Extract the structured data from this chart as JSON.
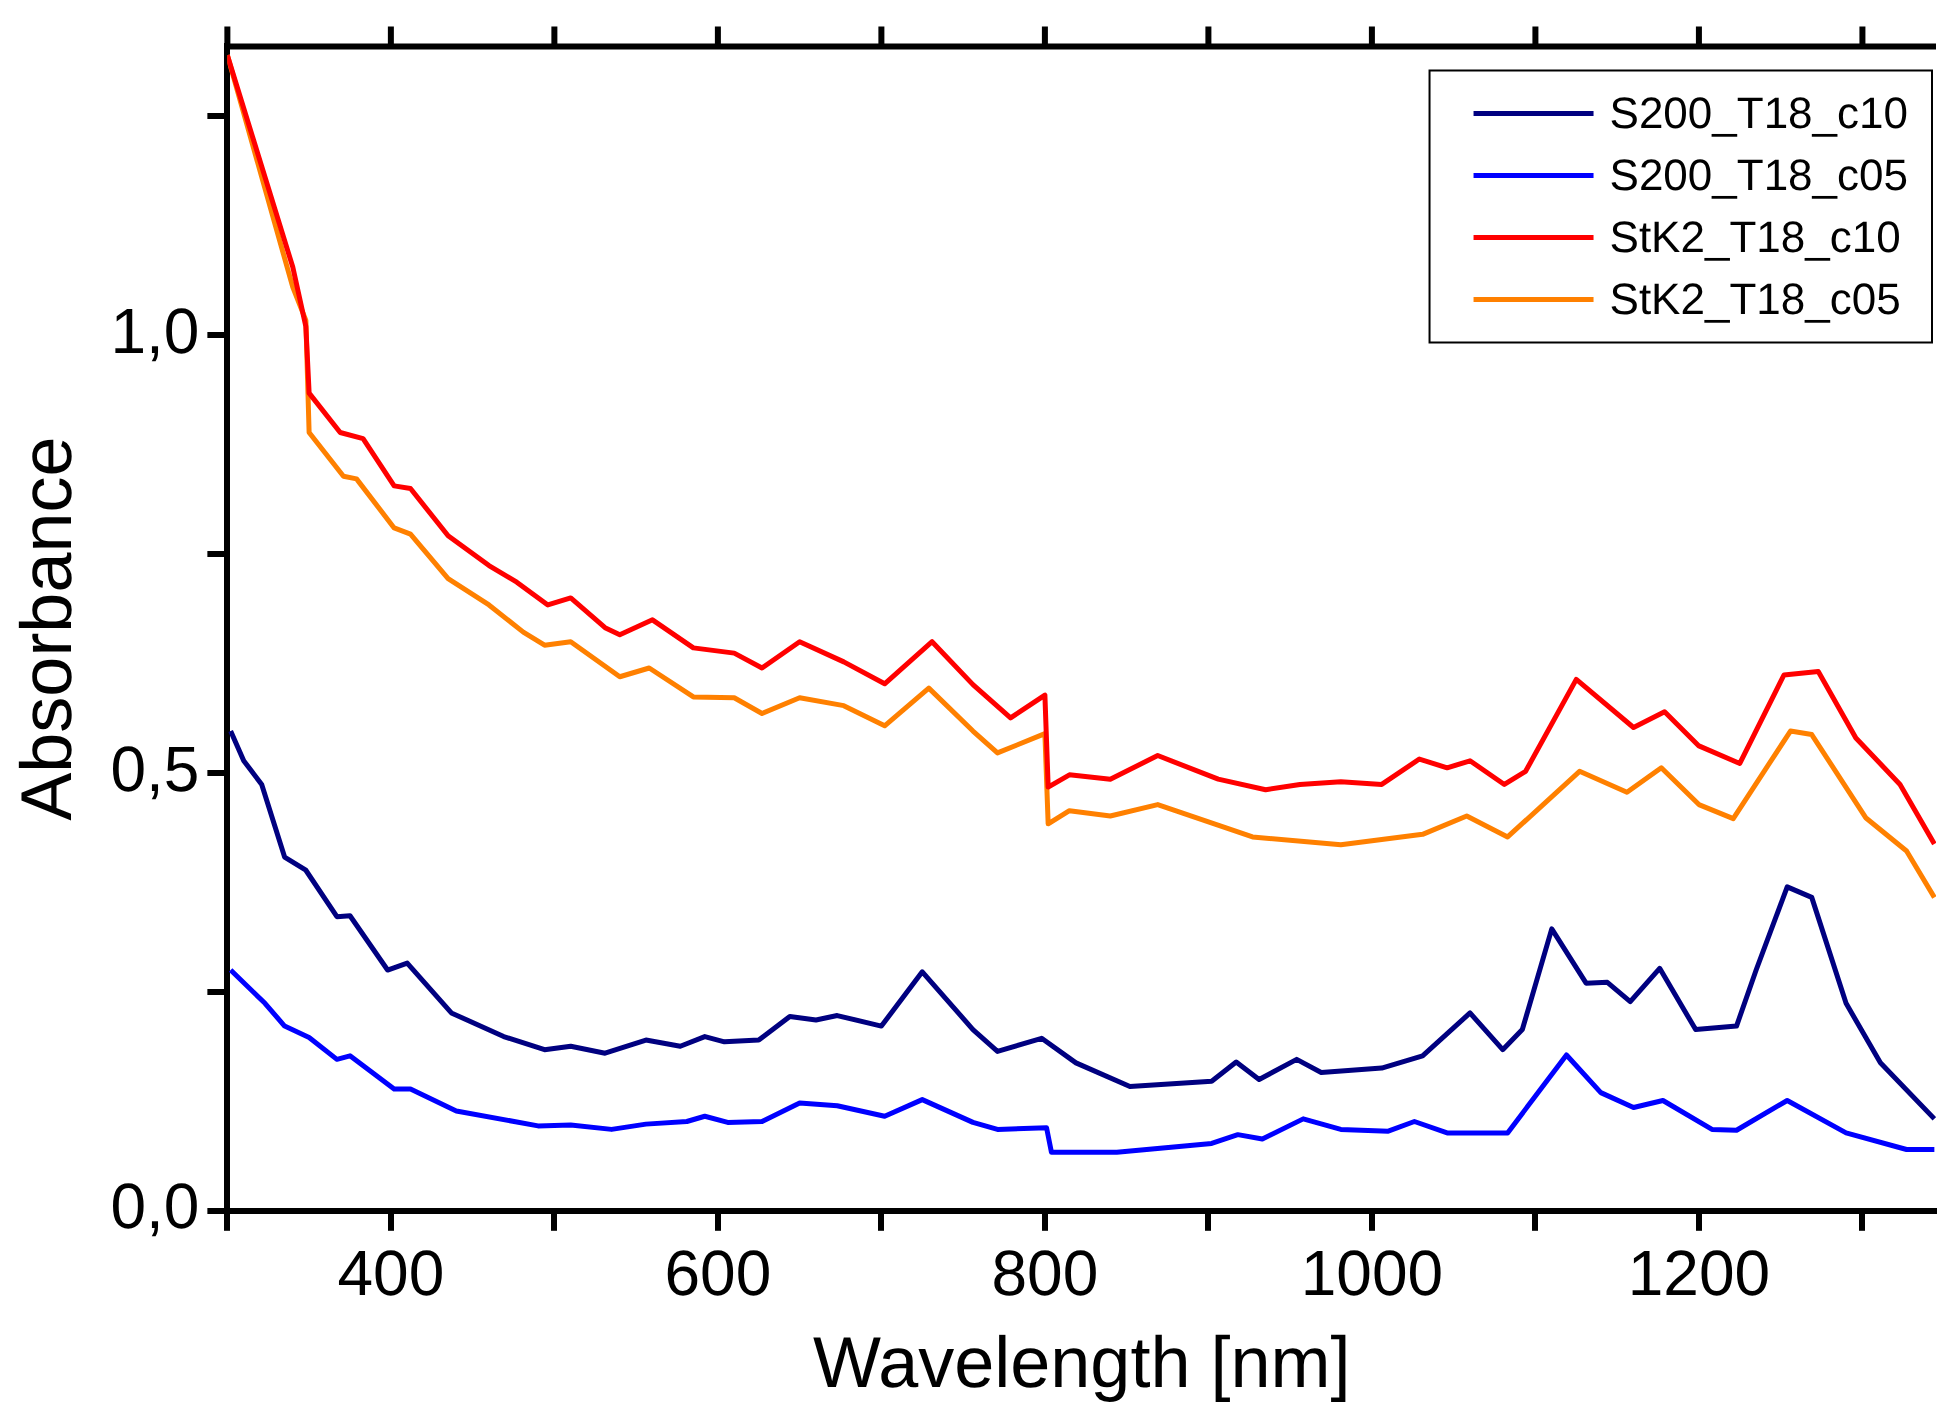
{
  "chart_data": {
    "type": "line",
    "xlabel": "Wavelength [nm]",
    "ylabel": "Absorbance",
    "xlim": [
      300,
      1345
    ],
    "ylim": [
      0,
      1.33
    ],
    "xticks": [
      {
        "value": 300,
        "label": null
      },
      400,
      {
        "value": 500,
        "label": null
      },
      600,
      {
        "value": 700,
        "label": null
      },
      800,
      {
        "value": 900,
        "label": null
      },
      1000,
      {
        "value": 1100,
        "label": null
      },
      1200,
      {
        "value": 1300,
        "label": null
      }
    ],
    "yticks": [
      {
        "value": 0,
        "label": "0,0"
      },
      {
        "value": 0.25,
        "label": null
      },
      {
        "value": 0.5,
        "label": "0,5"
      },
      {
        "value": 0.75,
        "label": null
      },
      {
        "value": 1,
        "label": "1,0"
      },
      {
        "value": 1.25,
        "label": null
      }
    ],
    "grid": false,
    "legend": "top right",
    "marker": "none",
    "line_style": "solid",
    "series": [
      {
        "name": "S200_T18_c10",
        "color": "#000080",
        "x": [
          302,
          310,
          321,
          335,
          348,
          367,
          375,
          398,
          410,
          437,
          469,
          494,
          510,
          531,
          556,
          577,
          592,
          604,
          625,
          644,
          660,
          673,
          700,
          725,
          756,
          771,
          798,
          819,
          852,
          902,
          917,
          931,
          954,
          969,
          1006,
          1031,
          1060,
          1080,
          1092,
          1110,
          1131,
          1144,
          1158,
          1176,
          1198,
          1223,
          1235,
          1254,
          1269,
          1290,
          1311,
          1344
        ],
        "values": [
          0.548,
          0.514,
          0.487,
          0.404,
          0.389,
          0.336,
          0.337,
          0.275,
          0.283,
          0.226,
          0.199,
          0.184,
          0.188,
          0.18,
          0.195,
          0.188,
          0.199,
          0.193,
          0.195,
          0.222,
          0.218,
          0.223,
          0.211,
          0.273,
          0.207,
          0.182,
          0.197,
          0.169,
          0.142,
          0.148,
          0.17,
          0.15,
          0.173,
          0.158,
          0.163,
          0.177,
          0.226,
          0.184,
          0.207,
          0.322,
          0.26,
          0.261,
          0.239,
          0.277,
          0.207,
          0.211,
          0.275,
          0.37,
          0.358,
          0.237,
          0.169,
          0.105
        ]
      },
      {
        "name": "S200_T18_c05",
        "color": "#0000ff",
        "x": [
          302,
          323,
          335,
          350,
          367,
          375,
          402,
          412,
          440,
          490,
          510,
          535,
          556,
          581,
          592,
          606,
          627,
          650,
          673,
          702,
          725,
          756,
          771,
          801,
          804,
          844,
          902,
          918,
          933,
          958,
          981,
          1010,
          1026,
          1046,
          1083,
          1119,
          1140,
          1160,
          1178,
          1208,
          1223,
          1254,
          1290,
          1327,
          1344
        ],
        "values": [
          0.275,
          0.237,
          0.211,
          0.198,
          0.173,
          0.177,
          0.139,
          0.139,
          0.114,
          0.097,
          0.098,
          0.093,
          0.099,
          0.102,
          0.108,
          0.101,
          0.102,
          0.123,
          0.12,
          0.108,
          0.127,
          0.101,
          0.093,
          0.095,
          0.067,
          0.067,
          0.077,
          0.087,
          0.082,
          0.105,
          0.093,
          0.091,
          0.102,
          0.089,
          0.089,
          0.178,
          0.135,
          0.118,
          0.126,
          0.093,
          0.092,
          0.126,
          0.089,
          0.07,
          0.07
        ]
      },
      {
        "name": "StK2_T18_c10",
        "color": "#ff0000",
        "x": [
          300,
          340,
          348,
          350,
          369,
          383,
          402,
          412,
          435,
          460,
          477,
          496,
          510,
          531,
          540,
          560,
          585,
          610,
          627,
          650,
          677,
          702,
          731,
          756,
          779,
          800,
          802,
          815,
          840,
          869,
          906,
          935,
          956,
          981,
          1006,
          1029,
          1046,
          1060,
          1081,
          1094,
          1125,
          1160,
          1179,
          1200,
          1225,
          1252,
          1273,
          1296,
          1323,
          1344
        ],
        "values": [
          1.32,
          1.078,
          1.01,
          0.934,
          0.889,
          0.882,
          0.828,
          0.825,
          0.771,
          0.737,
          0.718,
          0.692,
          0.7,
          0.666,
          0.658,
          0.675,
          0.643,
          0.637,
          0.62,
          0.65,
          0.627,
          0.602,
          0.65,
          0.601,
          0.563,
          0.589,
          0.484,
          0.498,
          0.493,
          0.52,
          0.493,
          0.481,
          0.487,
          0.49,
          0.487,
          0.516,
          0.506,
          0.514,
          0.487,
          0.502,
          0.607,
          0.552,
          0.57,
          0.531,
          0.511,
          0.612,
          0.616,
          0.54,
          0.487,
          0.419
        ]
      },
      {
        "name": "StK2_T18_c05",
        "color": "#ff8000",
        "x": [
          300,
          340,
          348,
          350,
          371,
          379,
          402,
          412,
          435,
          460,
          481,
          494,
          510,
          540,
          558,
          585,
          610,
          627,
          650,
          677,
          702,
          729,
          756,
          771,
          800,
          802,
          815,
          840,
          869,
          927,
          981,
          1031,
          1058,
          1083,
          1127,
          1156,
          1177,
          1200,
          1221,
          1256,
          1269,
          1302,
          1327,
          1344
        ],
        "values": [
          1.32,
          1.055,
          1.017,
          0.889,
          0.839,
          0.836,
          0.78,
          0.773,
          0.722,
          0.692,
          0.661,
          0.646,
          0.65,
          0.61,
          0.62,
          0.587,
          0.586,
          0.568,
          0.586,
          0.577,
          0.554,
          0.597,
          0.548,
          0.523,
          0.545,
          0.442,
          0.457,
          0.451,
          0.464,
          0.427,
          0.418,
          0.43,
          0.451,
          0.427,
          0.502,
          0.478,
          0.506,
          0.464,
          0.448,
          0.548,
          0.544,
          0.449,
          0.411,
          0.358
        ]
      }
    ]
  }
}
